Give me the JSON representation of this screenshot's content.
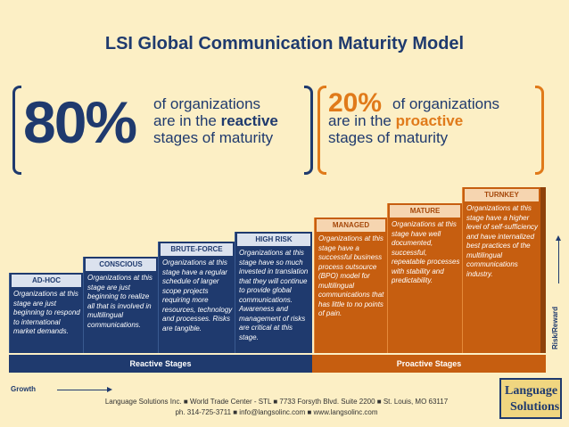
{
  "title": "LSI Global Communication Maturity Model",
  "stats": {
    "left": {
      "pct": "80%",
      "line1": "of organizations",
      "line2_pre": "are in the ",
      "line2_em": "reactive",
      "line3": "stages of maturity"
    },
    "right": {
      "pct": "20%",
      "line1": "of organizations",
      "line2_pre": "are in the ",
      "line2_em": "proactive",
      "line3": "stages of maturity"
    }
  },
  "stages": [
    {
      "label": "AD-HOC",
      "desc": "Organizations at this stage are just beginning to respond to international market demands."
    },
    {
      "label": "CONSCIOUS",
      "desc": "Organizations at this stage are just beginning to realize all that is involved in multilingual communications."
    },
    {
      "label": "BRUTE-FORCE",
      "desc": "Organizations at this stage have a regular schedule of larger scope projects requiring more resources, technology and processes. Risks are tangible."
    },
    {
      "label": "HIGH RISK",
      "desc": "Organizations at this stage have so much invested in translation that they will continue to provide global communications. Awareness and management of risks are critical at this stage."
    },
    {
      "label": "MANAGED",
      "desc": "Organizations at this stage have a successful business process outsource (BPO) model for multilingual communications that has little to no points of pain."
    },
    {
      "label": "MATURE",
      "desc": "Organizations at this stage have well documented, successful, repeatable processes with stability and predictability."
    },
    {
      "label": "TURNKEY",
      "desc": "Organizations at this stage have a higher level of self-sufficiency and have internalized best practices of the multilingual communications industry."
    }
  ],
  "bases": {
    "reactive": "Reactive Stages",
    "proactive": "Proactive Stages"
  },
  "axis": {
    "growth": "Growth",
    "risk": "Risk/Reward"
  },
  "footer": {
    "line1": "Language Solutions Inc. ■ World Trade Center - STL ■ 7733 Forsyth Blvd. Suite 2200 ■ St. Louis, MO 63117",
    "line2": "ph. 314-725-3711 ■ info@langsolinc.com ■ www.langsolinc.com"
  },
  "logo": {
    "line1": "Language",
    "line2": "Solutions"
  },
  "colors": {
    "navy": "#1f3a6e",
    "orange": "#c65e10",
    "accent_orange": "#e07a1a",
    "background": "#fcefc5"
  }
}
